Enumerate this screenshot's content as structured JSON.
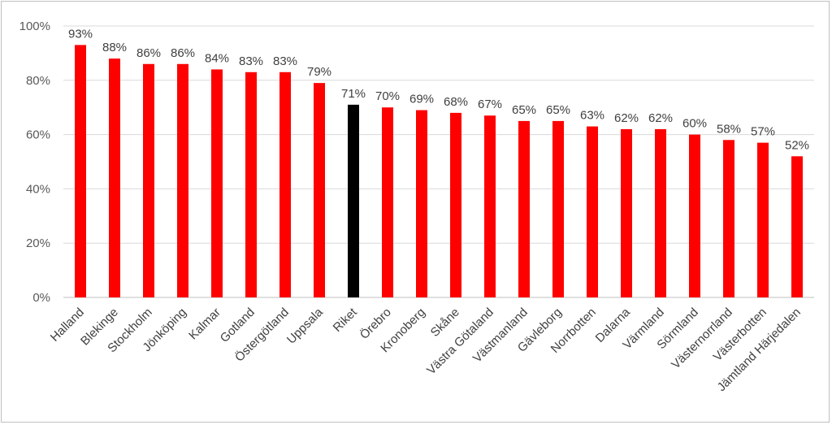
{
  "chart_data": {
    "type": "bar",
    "title": "",
    "xlabel": "",
    "ylabel": "",
    "ylim": [
      0,
      100
    ],
    "yticks": [
      "0%",
      "20%",
      "40%",
      "60%",
      "80%",
      "100%"
    ],
    "ytick_values": [
      0,
      20,
      40,
      60,
      80,
      100
    ],
    "grid": true,
    "categories": [
      "Halland",
      "Blekinge",
      "Stockholm",
      "Jönköping",
      "Kalmar",
      "Gotland",
      "Östergötland",
      "Uppsala",
      "Riket",
      "Örebro",
      "Kronoberg",
      "Skåne",
      "Västra Götaland",
      "Västmanland",
      "Gävleborg",
      "Norrbotten",
      "Dalarna",
      "Värmland",
      "Sörmland",
      "Västernorrland",
      "Västerbotten",
      "Jämtland Härjedalen"
    ],
    "values": [
      93,
      88,
      86,
      86,
      84,
      83,
      83,
      79,
      71,
      70,
      69,
      68,
      67,
      65,
      65,
      63,
      62,
      62,
      60,
      58,
      57,
      52
    ],
    "data_labels": [
      "93%",
      "88%",
      "86%",
      "86%",
      "84%",
      "83%",
      "83%",
      "79%",
      "71%",
      "70%",
      "69%",
      "68%",
      "67%",
      "65%",
      "65%",
      "63%",
      "62%",
      "62%",
      "60%",
      "58%",
      "57%",
      "52%"
    ],
    "colors": {
      "bar": "#ff0000",
      "highlight": "#000000",
      "gridline": "#d9d9d9",
      "axis": "#bfbfbf"
    },
    "highlight_category": "Riket"
  }
}
